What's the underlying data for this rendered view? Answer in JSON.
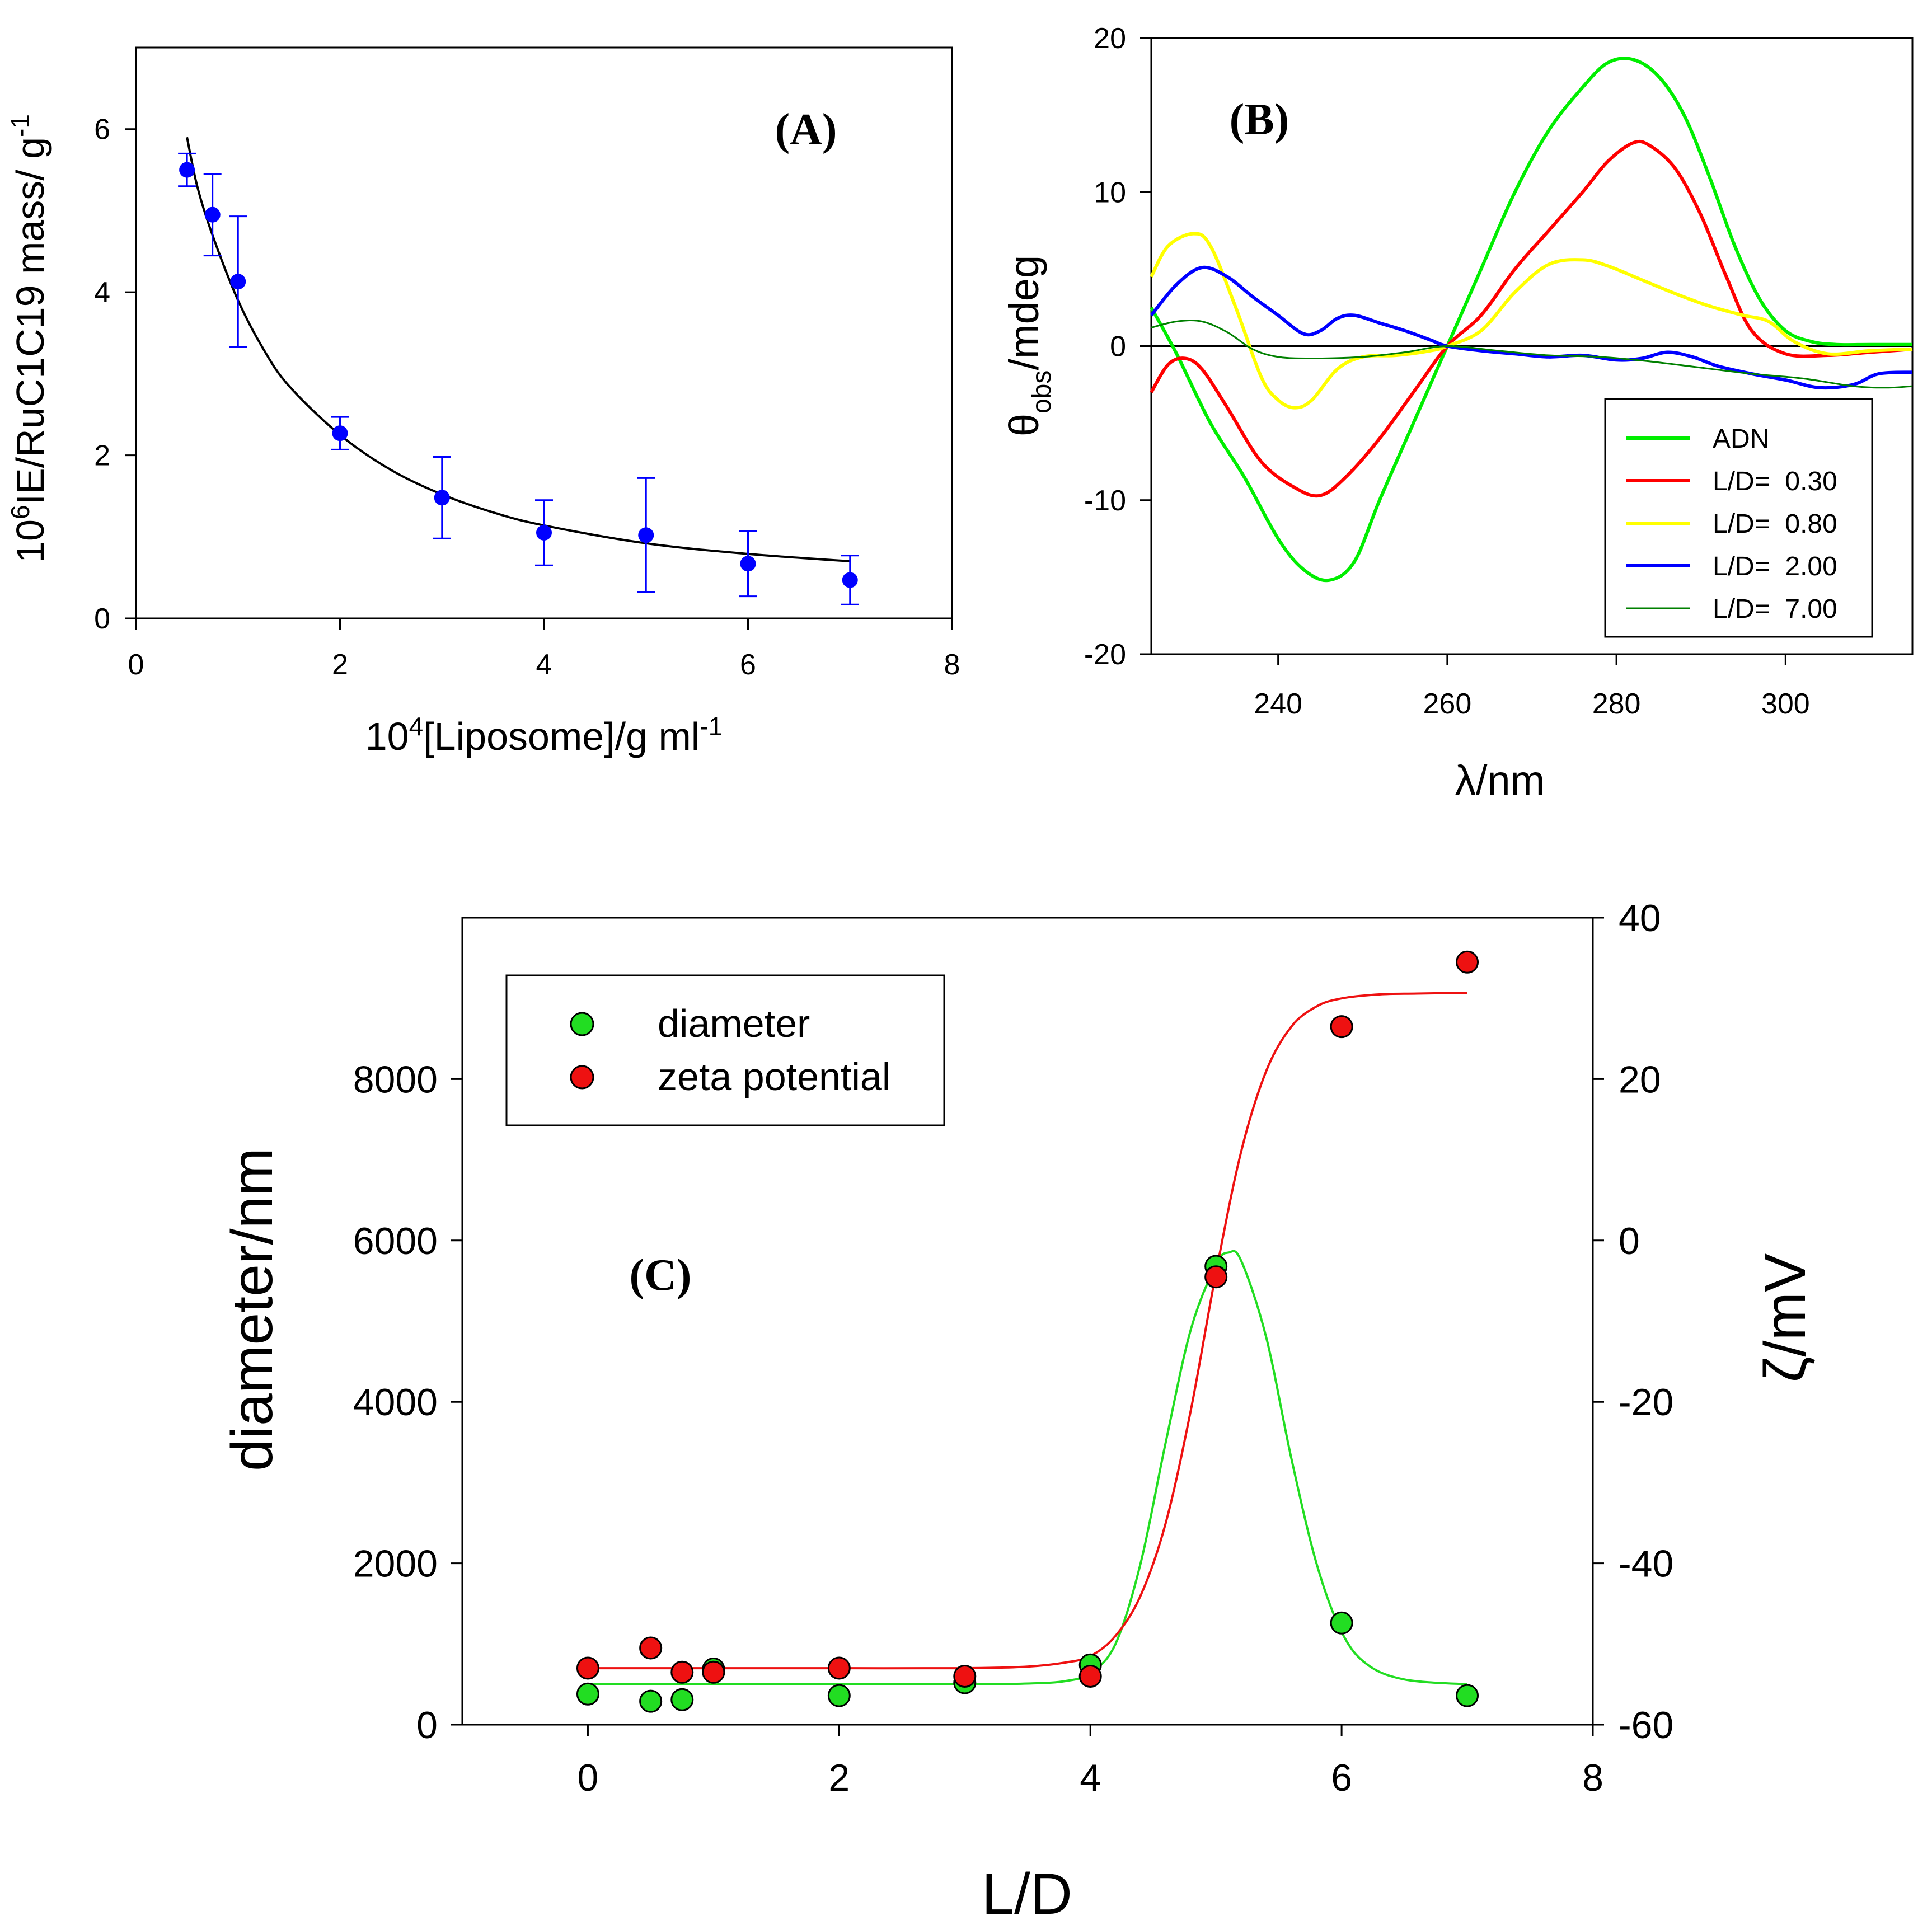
{
  "chart_data": [
    {
      "panel": "A",
      "type": "scatter",
      "label": "(A)",
      "xlabel": {
        "base": "10",
        "sup": "4",
        "text": "[Liposome]/g ml",
        "sup2": "-1"
      },
      "ylabel": {
        "base": "10",
        "sup": "6",
        "text": "IE/RuC1C19 mass/ g",
        "sup2": "-1"
      },
      "xlim": [
        0,
        8
      ],
      "ylim": [
        0,
        7
      ],
      "xticks": [
        0,
        2,
        4,
        6,
        8
      ],
      "yticks": [
        0,
        2,
        4,
        6
      ],
      "xtick_labels": [
        "0",
        "2",
        "4",
        "6",
        "8"
      ],
      "ytick_labels": [
        "0",
        "2",
        "4",
        "6"
      ],
      "points": [
        {
          "x": 0.5,
          "y": 5.5,
          "err": 0.2
        },
        {
          "x": 0.75,
          "y": 4.95,
          "err": 0.5
        },
        {
          "x": 1.0,
          "y": 4.13,
          "err": 0.8
        },
        {
          "x": 2.0,
          "y": 2.27,
          "err": 0.2
        },
        {
          "x": 3.0,
          "y": 1.48,
          "err": 0.5
        },
        {
          "x": 4.0,
          "y": 1.05,
          "err": 0.4
        },
        {
          "x": 5.0,
          "y": 1.02,
          "err": 0.7
        },
        {
          "x": 6.0,
          "y": 0.67,
          "err": 0.4
        },
        {
          "x": 7.0,
          "y": 0.47,
          "err": 0.3
        }
      ],
      "fit": {
        "x": [
          0.5,
          0.6,
          0.75,
          1.0,
          1.25,
          1.5,
          2.0,
          2.5,
          3.0,
          3.5,
          4.0,
          5.0,
          6.0,
          7.0
        ],
        "y": [
          5.9,
          5.3,
          4.7,
          3.9,
          3.3,
          2.85,
          2.25,
          1.82,
          1.52,
          1.3,
          1.14,
          0.92,
          0.79,
          0.7
        ]
      },
      "colors": {
        "points": "#0000ff",
        "fit": "#000000"
      }
    },
    {
      "panel": "B",
      "type": "line",
      "label": "(B)",
      "xlabel": "λ/nm",
      "ylabel": {
        "base": "θ",
        "sub": "obs",
        "text": "/mdeg"
      },
      "xlim": [
        225,
        315
      ],
      "ylim": [
        -20,
        20
      ],
      "xticks": [
        240,
        260,
        280,
        300
      ],
      "yticks": [
        -20,
        -10,
        0,
        10,
        20
      ],
      "xtick_labels": [
        "240",
        "260",
        "280",
        "300"
      ],
      "ytick_labels": [
        "-20",
        "-10",
        "0",
        "10",
        "20"
      ],
      "series": [
        {
          "name": "ADN",
          "color": "#00ee00",
          "width": "thick",
          "x": [
            225,
            228,
            232,
            236,
            240,
            243,
            246,
            249,
            252,
            256,
            260,
            264,
            268,
            272,
            276,
            279,
            282,
            285,
            288,
            291,
            294,
            297,
            300,
            303,
            306,
            310,
            315
          ],
          "y": [
            2.5,
            -0.5,
            -5,
            -8.5,
            -12.5,
            -14.5,
            -15.2,
            -14,
            -10,
            -5,
            0,
            5,
            10,
            14,
            16.8,
            18.4,
            18.6,
            17.5,
            15,
            11,
            6.5,
            3,
            1,
            0.3,
            0.1,
            0.1,
            0.1
          ]
        },
        {
          "name": "L/D=  0.30",
          "color": "#ff0000",
          "width": "thick",
          "x": [
            225,
            227,
            229,
            231,
            234,
            238,
            242,
            245,
            248,
            252,
            256,
            260,
            264,
            268,
            272,
            276,
            279,
            282,
            284,
            287,
            290,
            293,
            296,
            300,
            305,
            310,
            315
          ],
          "y": [
            -3,
            -1.2,
            -0.8,
            -1.5,
            -4,
            -7.5,
            -9.2,
            -9.7,
            -8.5,
            -6,
            -3,
            0,
            2,
            5,
            7.5,
            10,
            12,
            13.2,
            13,
            11.5,
            8.5,
            4.5,
            1,
            -0.5,
            -0.6,
            -0.4,
            -0.2
          ]
        },
        {
          "name": "L/D=  0.80",
          "color": "#ffff00",
          "width": "thick",
          "x": [
            225,
            227,
            230,
            232,
            235,
            238,
            240,
            242,
            244,
            247,
            250,
            254,
            258,
            260,
            264,
            268,
            272,
            276,
            279,
            283,
            287,
            291,
            295,
            298,
            301,
            305,
            310,
            315
          ],
          "y": [
            4.5,
            6.5,
            7.3,
            6.5,
            2.5,
            -2,
            -3.5,
            -4,
            -3.5,
            -1.5,
            -0.7,
            -0.6,
            -0.3,
            0,
            1,
            3.5,
            5.3,
            5.6,
            5.2,
            4.3,
            3.4,
            2.6,
            2,
            1.6,
            0.3,
            -0.5,
            -0.3,
            -0.2
          ]
        },
        {
          "name": "L/D=  2.00",
          "color": "#0000ff",
          "width": "thick",
          "x": [
            225,
            228,
            231,
            234,
            237,
            240,
            243,
            245,
            247,
            249,
            252,
            255,
            258,
            260,
            264,
            268,
            272,
            276,
            280,
            283,
            286,
            289,
            292,
            296,
            300,
            304,
            308,
            311,
            315
          ],
          "y": [
            2,
            4,
            5.1,
            4.5,
            3.2,
            2,
            0.8,
            1,
            1.8,
            2,
            1.5,
            1,
            0.4,
            0,
            -0.3,
            -0.5,
            -0.7,
            -0.6,
            -0.9,
            -0.8,
            -0.4,
            -0.7,
            -1.3,
            -1.8,
            -2.2,
            -2.7,
            -2.5,
            -1.8,
            -1.7
          ]
        },
        {
          "name": "L/D=  7.00",
          "color": "#008000",
          "width": "thin",
          "x": [
            225,
            228,
            231,
            234,
            237,
            240,
            244,
            250,
            255,
            260,
            266,
            272,
            278,
            284,
            290,
            296,
            302,
            308,
            312,
            315
          ],
          "y": [
            1.2,
            1.6,
            1.6,
            0.9,
            -0.2,
            -0.7,
            -0.8,
            -0.7,
            -0.4,
            0,
            -0.3,
            -0.6,
            -0.7,
            -1,
            -1.4,
            -1.8,
            -2.1,
            -2.6,
            -2.7,
            -2.6
          ]
        }
      ]
    },
    {
      "panel": "C",
      "type": "scatter",
      "label": "(C)",
      "xlabel": "L/D",
      "ylabel": "diameter/nm",
      "y2label": "ζ/mV",
      "xlim": [
        -1,
        8
      ],
      "ylim": [
        0,
        10000
      ],
      "y2lim": [
        -60,
        40
      ],
      "xticks": [
        0,
        2,
        4,
        6,
        8
      ],
      "yticks": [
        0,
        2000,
        4000,
        6000,
        8000
      ],
      "y2ticks": [
        -60,
        -40,
        -20,
        0,
        20,
        40
      ],
      "xtick_labels": [
        "0",
        "2",
        "4",
        "6",
        "8"
      ],
      "ytick_labels": [
        "0",
        "2000",
        "4000",
        "6000",
        "8000"
      ],
      "y2tick_labels": [
        "-60",
        "-40",
        "-20",
        "0",
        "20",
        "40"
      ],
      "legend": [
        "diameter",
        "zeta potential"
      ],
      "series": [
        {
          "name": "diameter",
          "axis": "left",
          "color": "#22dd22",
          "points": [
            [
              0,
              380
            ],
            [
              0.5,
              290
            ],
            [
              0.75,
              310
            ],
            [
              1.0,
              690
            ],
            [
              2.0,
              360
            ],
            [
              3.0,
              520
            ],
            [
              4.0,
              740
            ],
            [
              5.0,
              5680
            ],
            [
              6.0,
              1260
            ],
            [
              7.0,
              360
            ]
          ],
          "fit": {
            "x": [
              0,
              1,
              2,
              3,
              3.5,
              3.8,
              4,
              4.2,
              4.4,
              4.6,
              4.8,
              5,
              5.1,
              5.2,
              5.4,
              5.6,
              5.8,
              6,
              6.2,
              6.5,
              7
            ],
            "y": [
              500,
              500,
              500,
              500,
              510,
              540,
              640,
              1000,
              2000,
              3500,
              4900,
              5700,
              5850,
              5750,
              4800,
              3300,
              2000,
              1150,
              750,
              560,
              500
            ]
          }
        },
        {
          "name": "zeta potential",
          "axis": "right",
          "color": "#ee1111",
          "points": [
            [
              0,
              -53
            ],
            [
              0.5,
              -50.5
            ],
            [
              0.75,
              -53.5
            ],
            [
              1.0,
              -53.5
            ],
            [
              2.0,
              -53
            ],
            [
              3.0,
              -54
            ],
            [
              4.0,
              -54
            ],
            [
              5.0,
              -4.5
            ],
            [
              6.0,
              26.5
            ],
            [
              7.0,
              34.5
            ]
          ],
          "fit": {
            "x": [
              0,
              1,
              2,
              3,
              3.5,
              3.8,
              4,
              4.2,
              4.4,
              4.6,
              4.8,
              5,
              5.2,
              5.4,
              5.6,
              5.8,
              6,
              6.3,
              6.6,
              7
            ],
            "y": [
              -53,
              -53,
              -53,
              -53,
              -52.8,
              -52.3,
              -51.5,
              -49,
              -44,
              -35,
              -21,
              -4,
              11,
              21,
              26.5,
              29,
              30,
              30.5,
              30.6,
              30.7
            ]
          }
        }
      ]
    }
  ]
}
